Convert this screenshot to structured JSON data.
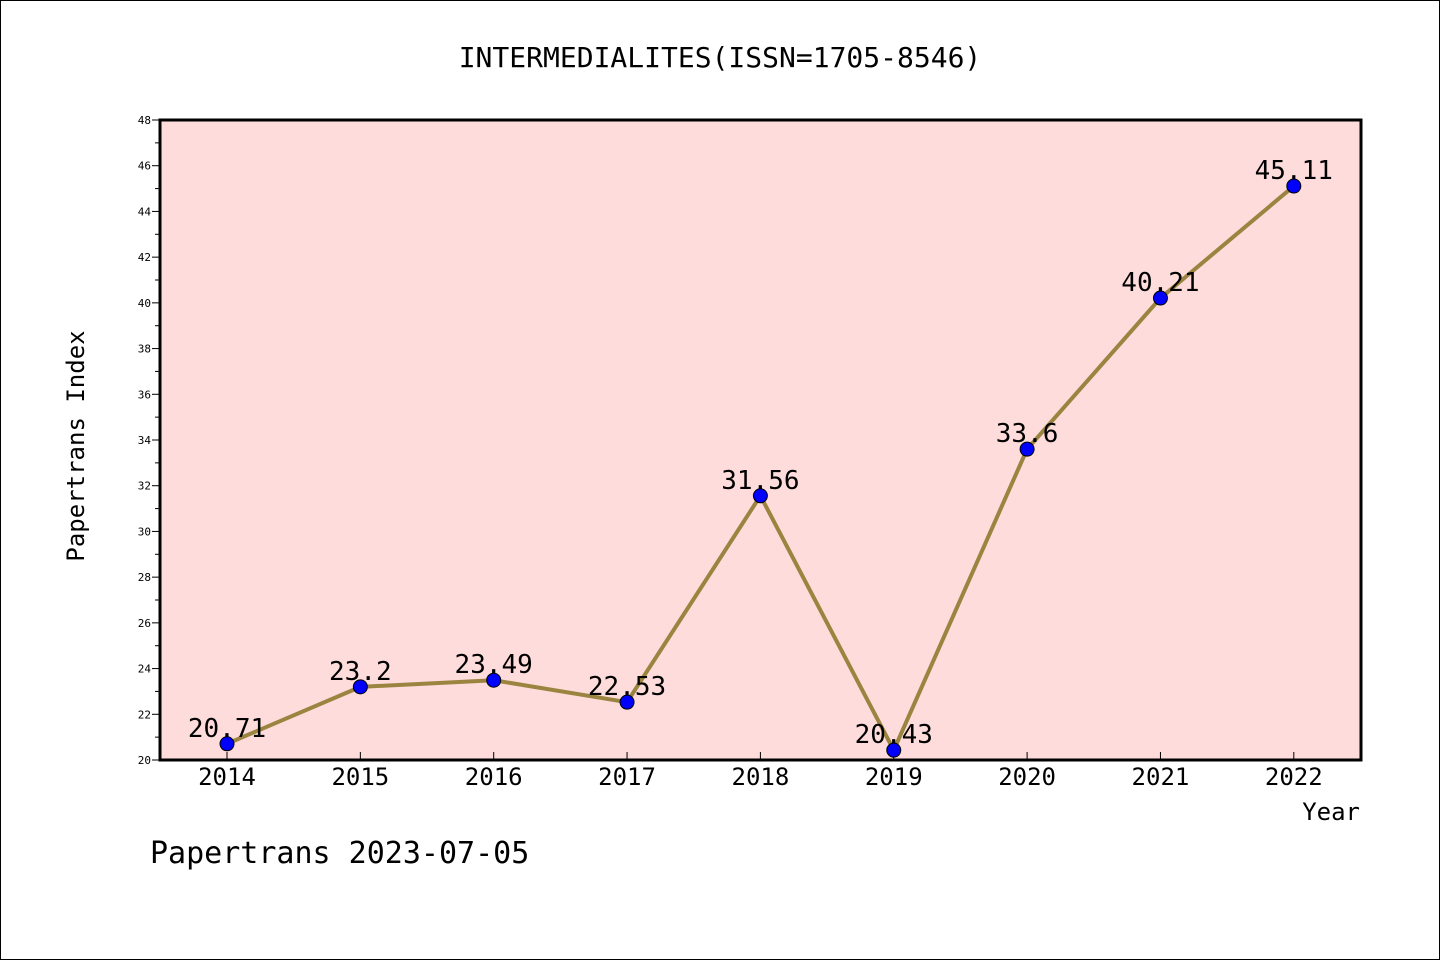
{
  "chart_data": {
    "type": "line",
    "title": "INTERMEDIALITES(ISSN=1705-8546)",
    "xlabel": "Year",
    "ylabel": "Papertrans Index",
    "categories": [
      "2014",
      "2015",
      "2016",
      "2017",
      "2018",
      "2019",
      "2020",
      "2021",
      "2022"
    ],
    "series": [
      {
        "values": [
          20.71,
          23.2,
          23.49,
          22.53,
          31.56,
          20.43,
          33.6,
          40.21,
          45.11
        ],
        "labels": [
          "20.71",
          "23.2",
          "23.49",
          "22.53",
          "31.56",
          "20.43",
          "33.6",
          "40.21",
          "45.11"
        ]
      }
    ],
    "ylim": [
      20,
      48
    ],
    "yticks": [
      "20",
      "22",
      "24",
      "26",
      "28",
      "30",
      "32",
      "34",
      "36",
      "38",
      "40",
      "42",
      "44",
      "46",
      "48"
    ],
    "grid": false,
    "plot_background": "#fddcdb",
    "line_color": "#9a8440",
    "marker_color": "#0000ff"
  },
  "footer": "Papertrans 2023-07-05"
}
